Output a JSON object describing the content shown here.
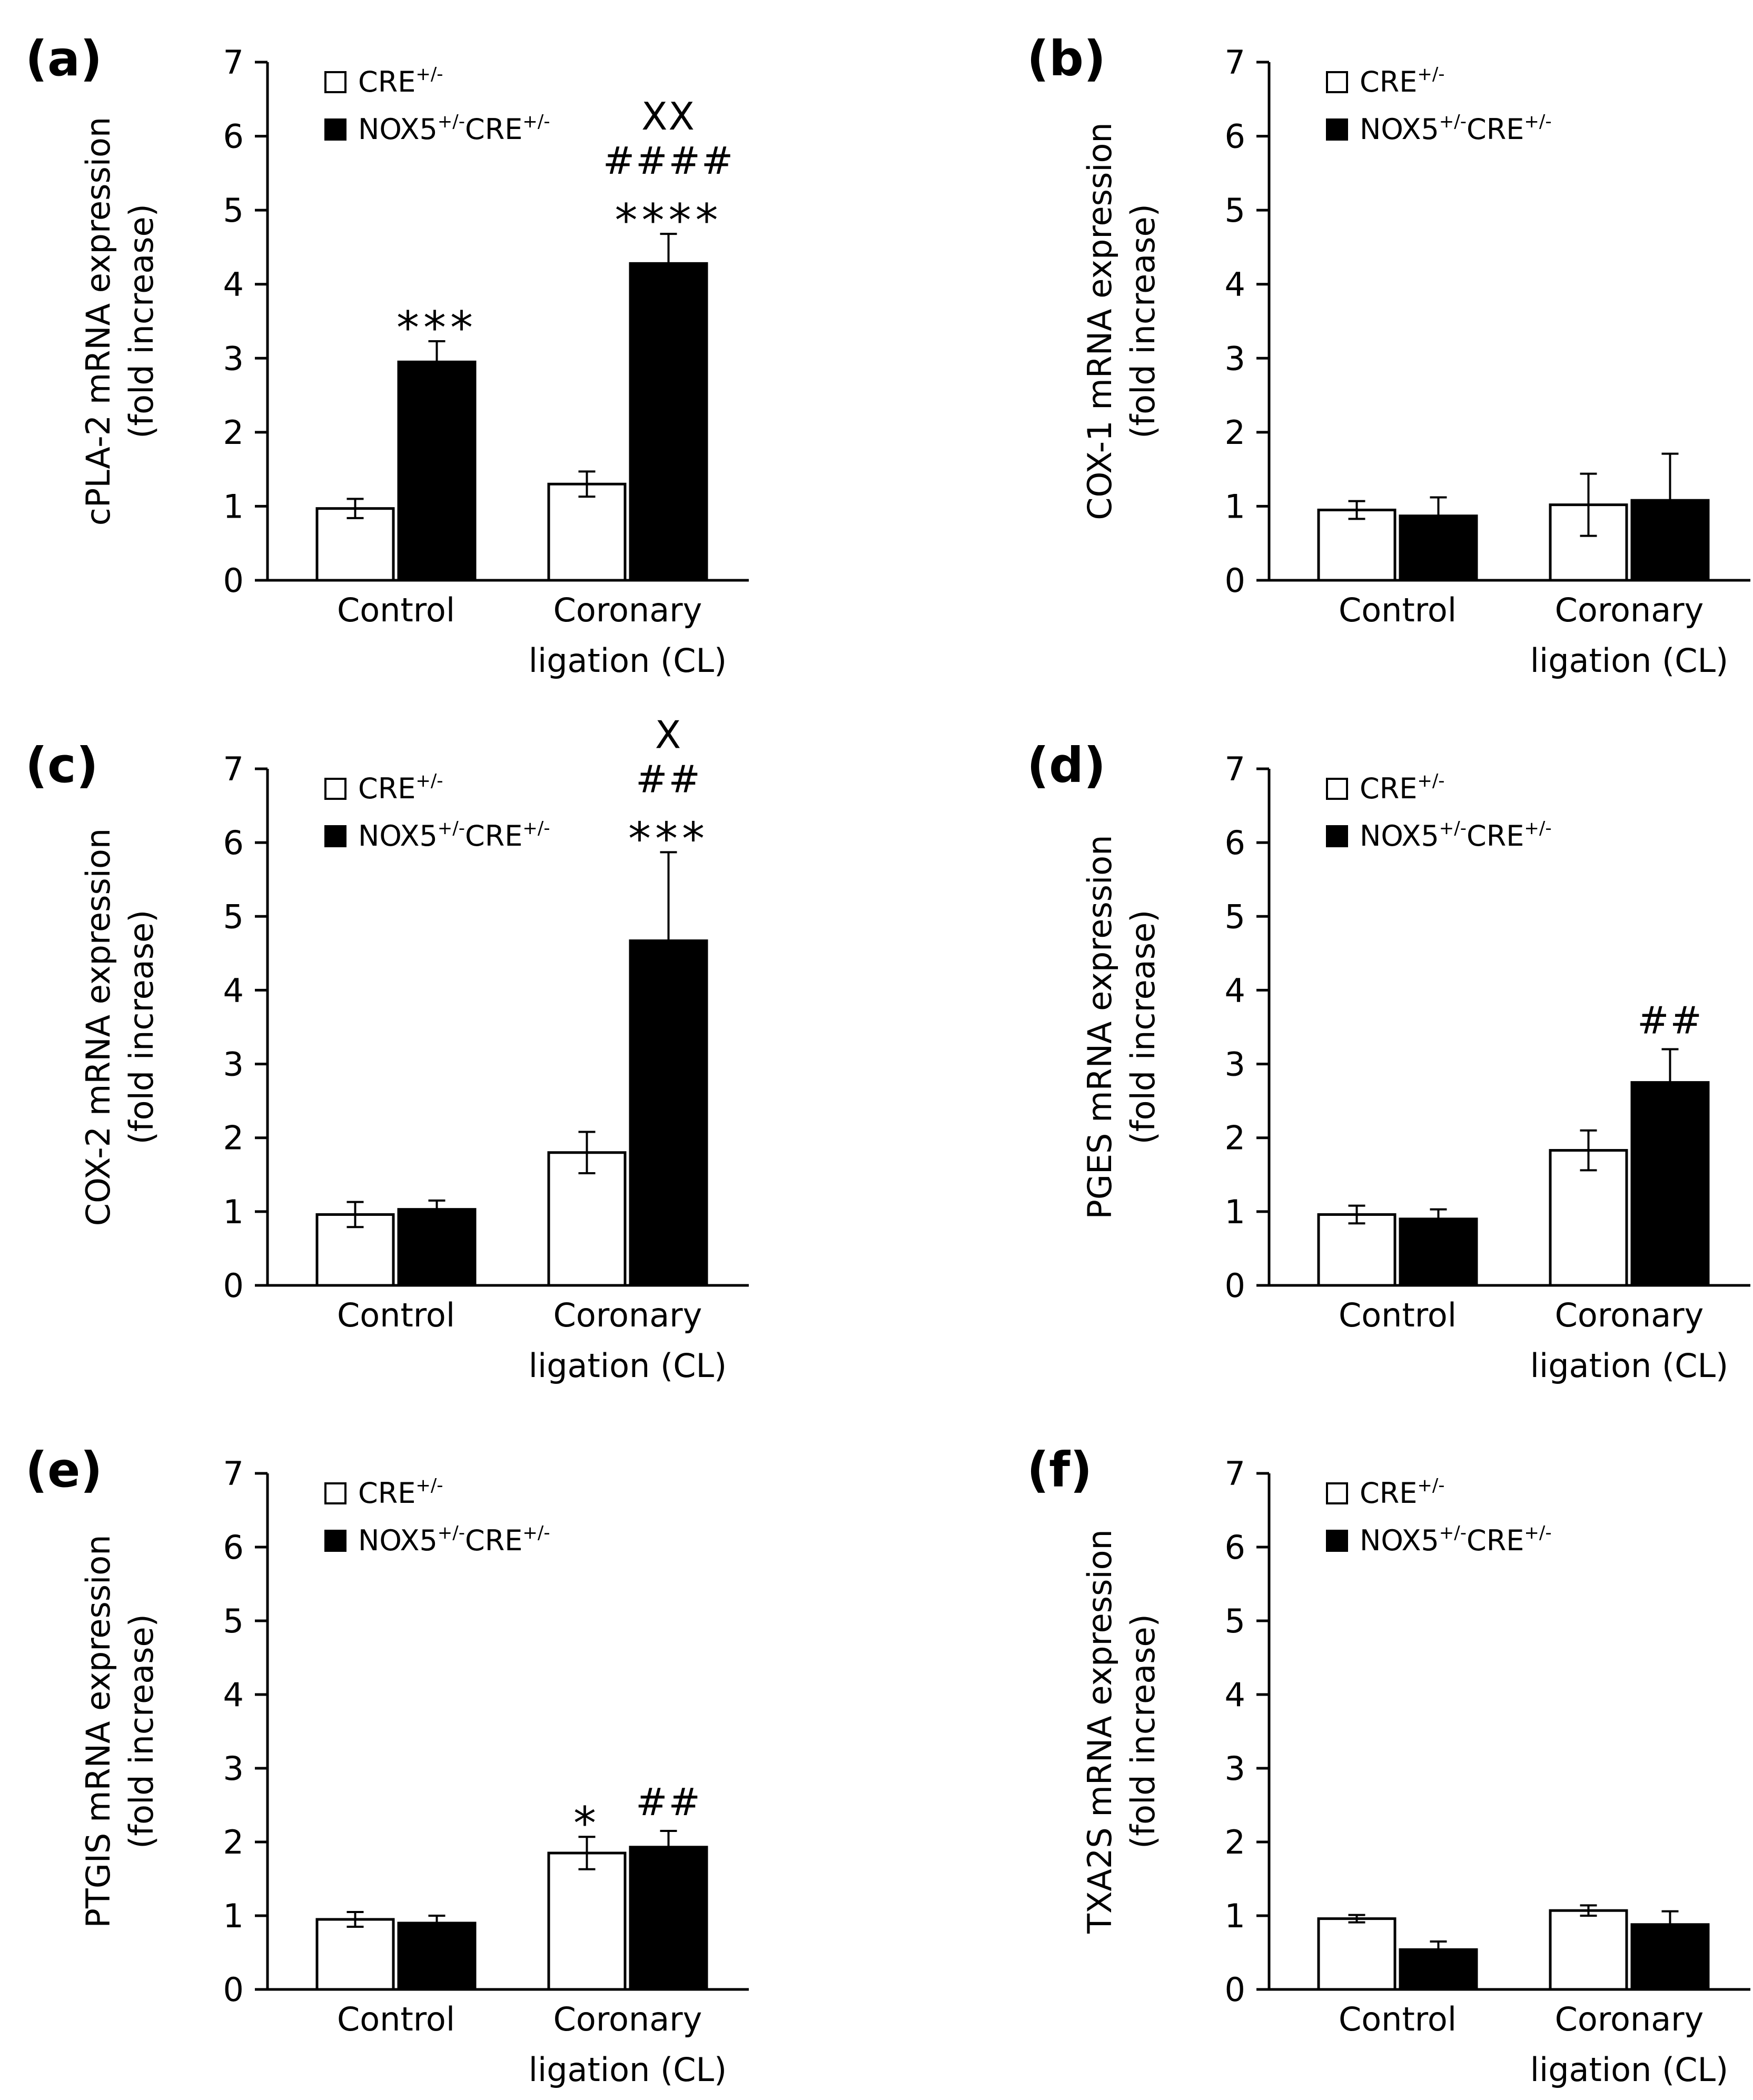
{
  "figure": {
    "legend": {
      "series_1": {
        "base": "CRE",
        "sup": "+/-"
      },
      "series_2": {
        "base1": "NOX5",
        "sup1": "+/-",
        "base2": "CRE",
        "sup2": "+/-"
      }
    },
    "colors": {
      "series_1": "#ffffff",
      "series_2": "#000000",
      "axis": "#000000"
    }
  },
  "chart_data": [
    {
      "type": "bar",
      "panel_label": "(a)",
      "ylabel_line1": "cPLA-2 mRNA expression",
      "ylabel_line2": "(fold increase)",
      "ylim": [
        0,
        7
      ],
      "yticks": [
        "0",
        "1",
        "2",
        "3",
        "4",
        "5",
        "6",
        "7"
      ],
      "categories": [
        [
          "Control"
        ],
        [
          "Coronary",
          "ligation (CL)"
        ]
      ],
      "series": [
        {
          "name": "CRE+/-",
          "values": [
            0.97,
            1.3
          ],
          "errors": [
            0.13,
            0.17
          ]
        },
        {
          "name": "NOX5+/-CRE+/-",
          "values": [
            2.95,
            4.28
          ],
          "errors": [
            0.28,
            0.4
          ]
        }
      ],
      "annotations": [
        {
          "category": 0,
          "series": 1,
          "lines": [
            "***"
          ]
        },
        {
          "category": 1,
          "series": 1,
          "lines": [
            "XX",
            "####",
            "****"
          ]
        }
      ]
    },
    {
      "type": "bar",
      "panel_label": "(b)",
      "ylabel_line1": "COX-1 mRNA expression",
      "ylabel_line2": "(fold increase)",
      "ylim": [
        0,
        7
      ],
      "yticks": [
        "0",
        "1",
        "2",
        "3",
        "4",
        "5",
        "6",
        "7"
      ],
      "categories": [
        [
          "Control"
        ],
        [
          "Coronary",
          "ligation (CL)"
        ]
      ],
      "series": [
        {
          "name": "CRE+/-",
          "values": [
            0.95,
            1.02
          ],
          "errors": [
            0.12,
            0.42
          ]
        },
        {
          "name": "NOX5+/-CRE+/-",
          "values": [
            0.87,
            1.08
          ],
          "errors": [
            0.25,
            0.63
          ]
        }
      ],
      "annotations": []
    },
    {
      "type": "bar",
      "panel_label": "(c)",
      "ylabel_line1": "COX-2 mRNA expression",
      "ylabel_line2": "(fold increase)",
      "ylim": [
        0,
        7
      ],
      "yticks": [
        "0",
        "1",
        "2",
        "3",
        "4",
        "5",
        "6",
        "7"
      ],
      "categories": [
        [
          "Control"
        ],
        [
          "Coronary",
          "ligation (CL)"
        ]
      ],
      "series": [
        {
          "name": "CRE+/-",
          "values": [
            0.96,
            1.8
          ],
          "errors": [
            0.17,
            0.28
          ]
        },
        {
          "name": "NOX5+/-CRE+/-",
          "values": [
            1.03,
            4.67
          ],
          "errors": [
            0.12,
            1.2
          ]
        }
      ],
      "annotations": [
        {
          "category": 1,
          "series": 1,
          "lines": [
            "X",
            "##",
            "***"
          ]
        }
      ]
    },
    {
      "type": "bar",
      "panel_label": "(d)",
      "ylabel_line1": "PGES mRNA expression",
      "ylabel_line2": "(fold increase)",
      "ylim": [
        0,
        7
      ],
      "yticks": [
        "0",
        "1",
        "2",
        "3",
        "4",
        "5",
        "6",
        "7"
      ],
      "categories": [
        [
          "Control"
        ],
        [
          "Coronary",
          "ligation (CL)"
        ]
      ],
      "series": [
        {
          "name": "CRE+/-",
          "values": [
            0.96,
            1.83
          ],
          "errors": [
            0.12,
            0.27
          ]
        },
        {
          "name": "NOX5+/-CRE+/-",
          "values": [
            0.9,
            2.75
          ],
          "errors": [
            0.13,
            0.45
          ]
        }
      ],
      "annotations": [
        {
          "category": 1,
          "series": 1,
          "lines": [
            "##"
          ]
        }
      ]
    },
    {
      "type": "bar",
      "panel_label": "(e)",
      "ylabel_line1": "PTGIS mRNA expression",
      "ylabel_line2": "(fold increase)",
      "ylim": [
        0,
        7
      ],
      "yticks": [
        "0",
        "1",
        "2",
        "3",
        "4",
        "5",
        "6",
        "7"
      ],
      "categories": [
        [
          "Control"
        ],
        [
          "Coronary",
          "ligation (CL)"
        ]
      ],
      "series": [
        {
          "name": "CRE+/-",
          "values": [
            0.95,
            1.85
          ],
          "errors": [
            0.1,
            0.22
          ]
        },
        {
          "name": "NOX5+/-CRE+/-",
          "values": [
            0.9,
            1.93
          ],
          "errors": [
            0.1,
            0.22
          ]
        }
      ],
      "annotations": [
        {
          "category": 1,
          "series": 0,
          "lines": [
            "*"
          ]
        },
        {
          "category": 1,
          "series": 1,
          "lines": [
            "##"
          ]
        }
      ]
    },
    {
      "type": "bar",
      "panel_label": "(f)",
      "ylabel_line1": "TXA2S mRNA expression",
      "ylabel_line2": "(fold increase)",
      "ylim": [
        0,
        7
      ],
      "yticks": [
        "0",
        "1",
        "2",
        "3",
        "4",
        "5",
        "6",
        "7"
      ],
      "categories": [
        [
          "Control"
        ],
        [
          "Coronary",
          "ligation (CL)"
        ]
      ],
      "series": [
        {
          "name": "CRE+/-",
          "values": [
            0.96,
            1.07
          ],
          "errors": [
            0.05,
            0.07
          ]
        },
        {
          "name": "NOX5+/-CRE+/-",
          "values": [
            0.54,
            0.88
          ],
          "errors": [
            0.11,
            0.18
          ]
        }
      ],
      "annotations": []
    }
  ]
}
